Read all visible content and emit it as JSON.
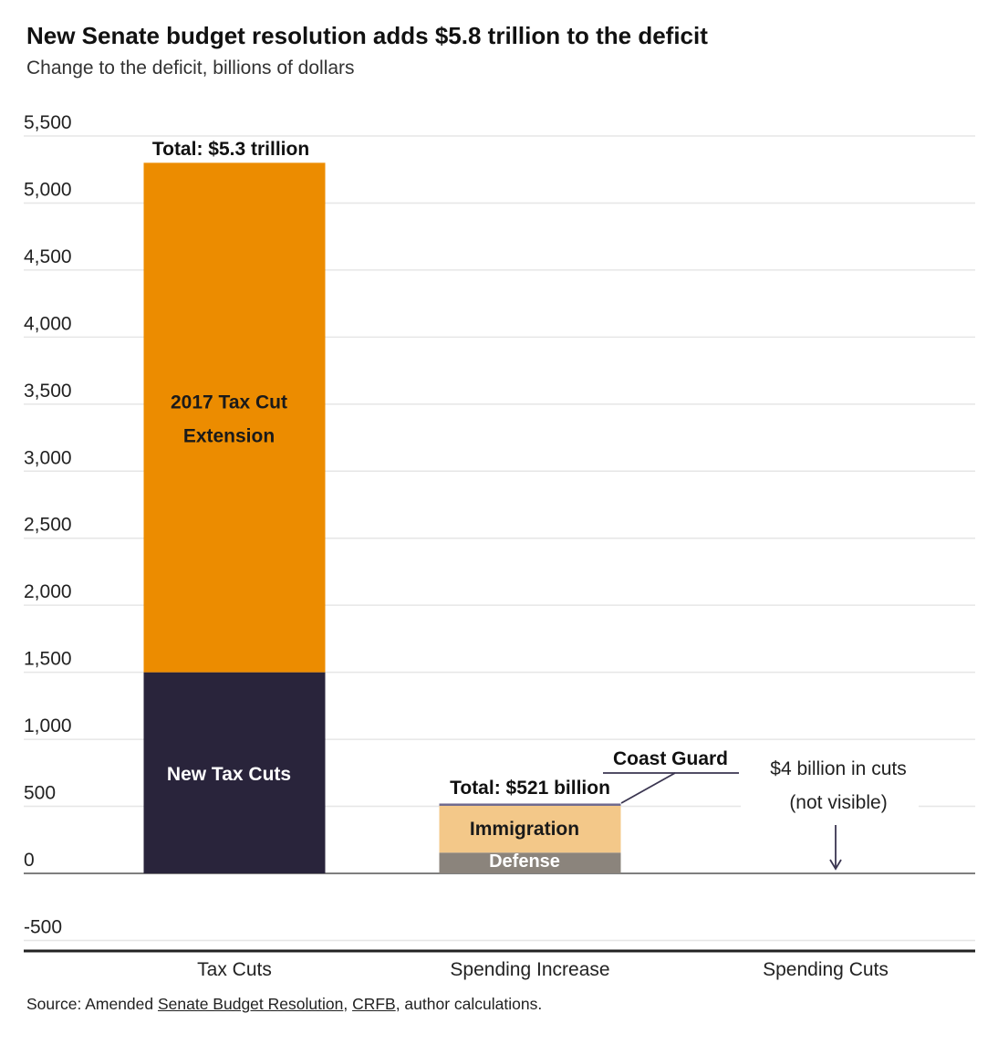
{
  "title": "New Senate budget resolution adds $5.8 trillion to the deficit",
  "subtitle": "Change to the deficit, billions of dollars",
  "source": {
    "prefix": "Source: Amended ",
    "link1": "Senate Budget Resolution",
    "sep": ", ",
    "link2": "CRFB",
    "suffix": ", author calculations."
  },
  "colors": {
    "dark": "#29243b",
    "orange": "#ec8c00",
    "light_orange": "#f3c889",
    "gray": "#8b847c",
    "coast": "#6f6a8e"
  },
  "chart_data": {
    "type": "bar",
    "stacked": true,
    "title": "New Senate budget resolution adds $5.8 trillion to the deficit",
    "ylabel": "Change to the deficit, billions of dollars",
    "ylim": [
      -500,
      5500
    ],
    "yticks": [
      -500,
      0,
      500,
      1000,
      1500,
      2000,
      2500,
      3000,
      3500,
      4000,
      4500,
      5000,
      5500
    ],
    "ytick_labels": [
      "-500",
      "0",
      "500",
      "1,000",
      "1,500",
      "2,000",
      "2,500",
      "3,000",
      "3,500",
      "4,000",
      "4,500",
      "5,000",
      "5,500"
    ],
    "grid": true,
    "categories": [
      "Tax Cuts",
      "Spending Increase",
      "Spending Cuts"
    ],
    "series": [
      {
        "name": "New Tax Cuts",
        "category": "Tax Cuts",
        "value": 1500,
        "color": "#29243b",
        "label_color": "#ffffff"
      },
      {
        "name": "2017 Tax Cut Extension",
        "category": "Tax Cuts",
        "value": 3800,
        "color": "#ec8c00",
        "label_color": "#1a1a1a"
      },
      {
        "name": "Defense",
        "category": "Spending Increase",
        "value": 155,
        "color": "#8b847c",
        "label_color": "#ffffff"
      },
      {
        "name": "Immigration",
        "category": "Spending Increase",
        "value": 355,
        "color": "#f3c889",
        "label_color": "#1a1a1a"
      },
      {
        "name": "Coast Guard",
        "category": "Spending Increase",
        "value": 11,
        "color": "#6f6a8e",
        "label_color": "#1a1a1a"
      },
      {
        "name": "Spending Cuts",
        "category": "Spending Cuts",
        "value": -4,
        "color": "#29243b"
      }
    ],
    "segment_labels": {
      "New Tax Cuts": "New Tax Cuts",
      "2017 Tax Cut Extension": [
        "2017 Tax Cut",
        "Extension"
      ],
      "Defense": "Defense",
      "Immigration": "Immigration",
      "Coast Guard": "Coast Guard"
    },
    "annotations": {
      "tax_total": "Total: $5.3 trillion",
      "spending_total": "Total: $521 billion",
      "cuts_note_1": "$4 billion in cuts",
      "cuts_note_2": "(not visible)"
    }
  }
}
